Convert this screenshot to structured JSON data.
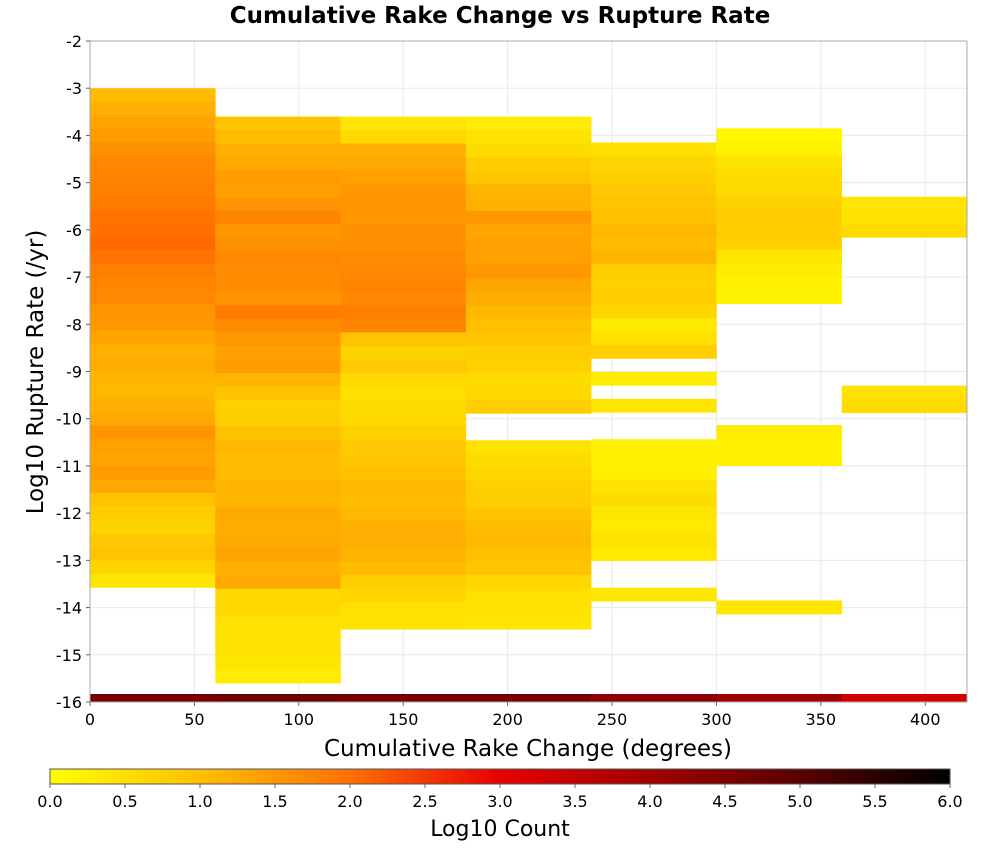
{
  "chart_data": {
    "type": "heatmap",
    "title": "Cumulative Rake Change vs Rupture Rate",
    "xlabel": "Cumulative Rake Change (degrees)",
    "ylabel": "Log10 Rupture Rate (/yr)",
    "xlim": [
      0,
      420
    ],
    "ylim": [
      -16,
      -2
    ],
    "xticks": [
      0,
      50,
      100,
      150,
      200,
      250,
      300,
      350,
      400
    ],
    "yticks": [
      -2,
      -3,
      -4,
      -5,
      -6,
      -7,
      -8,
      -9,
      -10,
      -11,
      -12,
      -13,
      -14,
      -15,
      -16
    ],
    "grid": true,
    "x_bin_width": 60,
    "y_bin_height": 0.2857,
    "colorbar": {
      "label": "Log10 Count",
      "min": 0.0,
      "max": 6.0,
      "ticks": [
        "0.0",
        "0.5",
        "1.0",
        "1.5",
        "2.0",
        "2.5",
        "3.0",
        "3.5",
        "4.0",
        "4.5",
        "5.0",
        "5.5",
        "6.0"
      ],
      "stops": [
        {
          "v": 0.0,
          "color": "#ffff00"
        },
        {
          "v": 1.0,
          "color": "#ffc000"
        },
        {
          "v": 2.0,
          "color": "#ff7000"
        },
        {
          "v": 3.0,
          "color": "#e80000"
        },
        {
          "v": 4.0,
          "color": "#a00000"
        },
        {
          "v": 5.0,
          "color": "#5a0000"
        },
        {
          "v": 6.0,
          "color": "#000000"
        }
      ]
    },
    "columns": [
      {
        "x0": 0,
        "y_top": -3.0,
        "values": [
          1.05,
          1.2,
          1.35,
          1.45,
          1.6,
          1.7,
          1.75,
          1.8,
          1.85,
          1.95,
          2.0,
          2.05,
          1.95,
          1.8,
          1.75,
          1.7,
          1.55,
          1.5,
          1.35,
          1.2,
          1.25,
          1.15,
          1.1,
          1.2,
          1.3,
          1.55,
          1.4,
          1.35,
          1.45,
          1.3,
          0.95,
          0.8,
          0.7,
          0.85,
          0.95,
          0.7,
          0.4
        ]
      },
      {
        "x0": 60,
        "y_top": -3.6,
        "values": [
          0.9,
          1.05,
          1.2,
          1.3,
          1.45,
          1.4,
          1.55,
          1.75,
          1.5,
          1.6,
          1.7,
          1.65,
          1.65,
          1.55,
          1.85,
          1.65,
          1.5,
          1.4,
          1.45,
          1.15,
          0.95,
          0.75,
          0.8,
          1.0,
          1.1,
          1.05,
          1.05,
          1.15,
          1.15,
          1.3,
          1.25,
          1.3,
          1.35,
          1.2,
          1.3,
          0.6,
          0.6,
          0.5,
          0.45,
          0.45,
          0.4,
          0.3
        ]
      },
      {
        "x0": 120,
        "y_top": -3.6,
        "values": [
          0.4,
          0.6,
          1.2,
          1.3,
          1.4,
          1.5,
          1.55,
          1.5,
          1.6,
          1.6,
          1.65,
          1.7,
          1.75,
          1.7,
          1.8,
          1.75,
          0.95,
          0.7,
          0.85,
          0.6,
          0.5,
          0.55,
          0.6,
          0.75,
          0.85,
          0.9,
          1.0,
          1.1,
          1.05,
          1.1,
          1.2,
          1.2,
          1.15,
          1.05,
          0.8,
          0.65,
          0.5,
          0.45
        ]
      },
      {
        "x0": 180,
        "y_top": -3.6,
        "values": [
          0.3,
          0.45,
          0.55,
          0.8,
          0.9,
          1.15,
          1.2,
          1.5,
          1.35,
          1.4,
          1.4,
          1.5,
          1.35,
          1.25,
          1.1,
          1.0,
          0.9,
          0.8,
          0.75,
          0.55,
          0.6,
          0.8,
          null,
          null,
          0.45,
          0.55,
          0.65,
          0.75,
          0.8,
          0.95,
          1.05,
          1.1,
          1.0,
          0.9,
          0.65,
          0.5,
          0.45,
          0.4
        ]
      },
      {
        "x0": 240,
        "y_top": -4.15,
        "values": [
          0.5,
          0.65,
          0.75,
          0.85,
          0.95,
          1.0,
          1.1,
          1.05,
          1.15,
          0.8,
          0.75,
          0.8,
          0.65,
          0.35,
          0.5,
          0.8,
          null,
          0.3,
          null,
          0.4,
          null,
          null,
          0.25,
          0.2,
          0.25,
          0.45,
          0.55,
          0.4,
          0.35,
          0.45,
          0.35,
          null,
          null,
          0.4
        ]
      },
      {
        "x0": 300,
        "y_top": -3.85,
        "values": [
          0.15,
          0.2,
          0.45,
          0.55,
          0.6,
          0.7,
          0.8,
          0.8,
          0.75,
          0.4,
          0.3,
          0.2,
          0.2,
          null,
          null,
          null,
          null,
          null,
          null,
          null,
          null,
          null,
          0.3,
          0.2,
          0.25,
          null,
          null,
          null,
          null,
          null,
          null,
          null,
          null,
          null,
          null,
          0.4
        ]
      },
      {
        "x0": 360,
        "y_top": -5.3,
        "values": [
          0.4,
          0.45,
          0.55,
          null,
          null,
          null,
          null,
          null,
          null,
          null,
          null,
          null,
          null,
          null,
          0.45,
          0.55
        ]
      }
    ],
    "bottom_row": {
      "y": -16,
      "values": [
        4.6,
        4.7,
        4.6,
        4.6,
        4.3,
        4.0,
        3.3
      ]
    }
  }
}
